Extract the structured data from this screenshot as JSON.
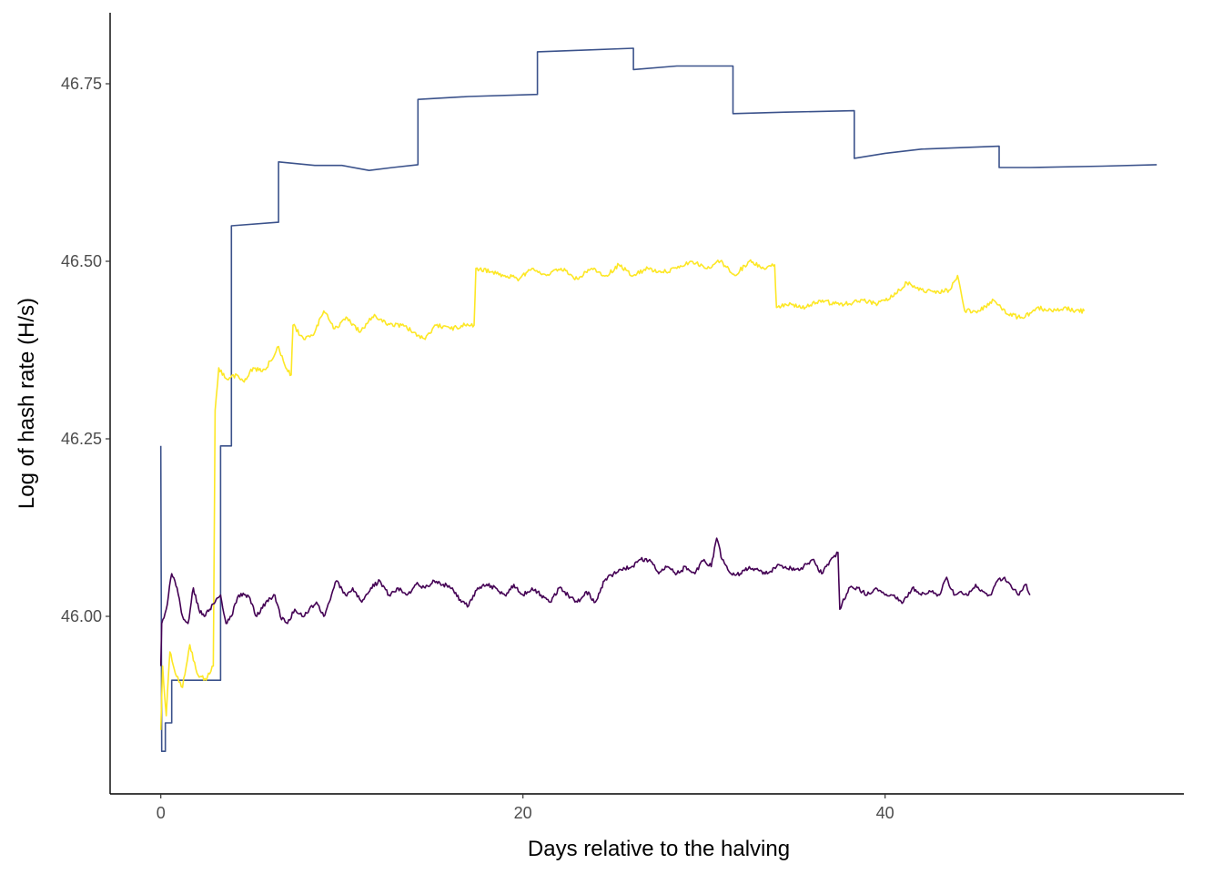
{
  "chart_data": {
    "type": "line",
    "title": "",
    "xlabel": "Days relative to the halving",
    "ylabel": "Log of hash rate (H/s)",
    "xlim": [
      -2.8,
      56.5
    ],
    "ylim": [
      45.75,
      46.85
    ],
    "x_ticks": [
      0,
      20,
      40
    ],
    "x_tick_labels": [
      "0",
      "20",
      "40"
    ],
    "y_ticks": [
      46.0,
      46.25,
      46.5,
      46.75
    ],
    "y_tick_labels": [
      "46.00",
      "46.25",
      "46.50",
      "46.75"
    ],
    "grid": false,
    "legend": "none",
    "series": [
      {
        "color": "#3b528b",
        "step": true,
        "points": [
          [
            0.0,
            46.24
          ],
          [
            0.05,
            45.81
          ],
          [
            0.25,
            45.81
          ],
          [
            0.25,
            45.85
          ],
          [
            0.6,
            45.85
          ],
          [
            0.6,
            45.91
          ],
          [
            3.3,
            45.91
          ],
          [
            3.3,
            46.24
          ],
          [
            3.9,
            46.24
          ],
          [
            3.9,
            46.55
          ],
          [
            6.5,
            46.555
          ],
          [
            6.5,
            46.64
          ],
          [
            8.5,
            46.635
          ],
          [
            10.0,
            46.635
          ],
          [
            11.5,
            46.628
          ],
          [
            12.8,
            46.632
          ],
          [
            14.2,
            46.636
          ],
          [
            14.2,
            46.728
          ],
          [
            17.0,
            46.732
          ],
          [
            20.8,
            46.735
          ],
          [
            20.8,
            46.795
          ],
          [
            23.0,
            46.797
          ],
          [
            26.1,
            46.8
          ],
          [
            26.1,
            46.77
          ],
          [
            28.5,
            46.775
          ],
          [
            31.6,
            46.775
          ],
          [
            31.6,
            46.708
          ],
          [
            34.5,
            46.71
          ],
          [
            38.3,
            46.712
          ],
          [
            38.3,
            46.645
          ],
          [
            40.0,
            46.652
          ],
          [
            42.0,
            46.658
          ],
          [
            46.3,
            46.662
          ],
          [
            46.3,
            46.632
          ],
          [
            48.0,
            46.632
          ],
          [
            52.0,
            46.634
          ],
          [
            55.0,
            46.636
          ]
        ]
      },
      {
        "color": "#fde725",
        "step": false,
        "points": [
          [
            0.0,
            45.84
          ],
          [
            0.1,
            45.93
          ],
          [
            0.3,
            45.86
          ],
          [
            0.5,
            45.95
          ],
          [
            0.8,
            45.92
          ],
          [
            1.2,
            45.9
          ],
          [
            1.6,
            45.96
          ],
          [
            2.0,
            45.92
          ],
          [
            2.5,
            45.91
          ],
          [
            2.9,
            45.93
          ],
          [
            3.0,
            46.29
          ],
          [
            3.2,
            46.35
          ],
          [
            3.6,
            46.335
          ],
          [
            4.2,
            46.34
          ],
          [
            4.6,
            46.33
          ],
          [
            5.1,
            46.35
          ],
          [
            5.6,
            46.345
          ],
          [
            6.1,
            46.36
          ],
          [
            6.5,
            46.38
          ],
          [
            6.9,
            46.35
          ],
          [
            7.2,
            46.34
          ],
          [
            7.3,
            46.41
          ],
          [
            7.9,
            46.39
          ],
          [
            8.5,
            46.4
          ],
          [
            9.0,
            46.43
          ],
          [
            9.6,
            46.405
          ],
          [
            10.3,
            46.42
          ],
          [
            11.0,
            46.4
          ],
          [
            11.8,
            46.425
          ],
          [
            12.5,
            46.41
          ],
          [
            13.3,
            46.41
          ],
          [
            14.0,
            46.4
          ],
          [
            14.6,
            46.39
          ],
          [
            15.2,
            46.41
          ],
          [
            16.0,
            46.405
          ],
          [
            16.8,
            46.41
          ],
          [
            17.3,
            46.41
          ],
          [
            17.4,
            46.49
          ],
          [
            18.2,
            46.485
          ],
          [
            19.0,
            46.48
          ],
          [
            19.8,
            46.475
          ],
          [
            20.5,
            46.49
          ],
          [
            21.3,
            46.48
          ],
          [
            22.1,
            46.49
          ],
          [
            23.0,
            46.475
          ],
          [
            23.8,
            46.49
          ],
          [
            24.6,
            46.48
          ],
          [
            25.3,
            46.495
          ],
          [
            26.1,
            46.48
          ],
          [
            26.9,
            46.49
          ],
          [
            27.7,
            46.485
          ],
          [
            28.5,
            46.49
          ],
          [
            29.3,
            46.5
          ],
          [
            30.1,
            46.49
          ],
          [
            30.9,
            46.5
          ],
          [
            31.7,
            46.48
          ],
          [
            32.5,
            46.5
          ],
          [
            33.3,
            46.49
          ],
          [
            33.9,
            46.495
          ],
          [
            34.0,
            46.435
          ],
          [
            34.8,
            46.44
          ],
          [
            35.6,
            46.435
          ],
          [
            36.4,
            46.445
          ],
          [
            37.2,
            46.44
          ],
          [
            38.0,
            46.44
          ],
          [
            38.8,
            46.445
          ],
          [
            39.6,
            46.44
          ],
          [
            40.4,
            46.45
          ],
          [
            41.2,
            46.47
          ],
          [
            42.0,
            46.46
          ],
          [
            42.8,
            46.455
          ],
          [
            43.6,
            46.46
          ],
          [
            44.0,
            46.48
          ],
          [
            44.4,
            46.43
          ],
          [
            45.2,
            46.43
          ],
          [
            46.0,
            46.445
          ],
          [
            46.8,
            46.425
          ],
          [
            47.6,
            46.42
          ],
          [
            48.4,
            46.435
          ],
          [
            49.2,
            46.43
          ],
          [
            50.0,
            46.435
          ],
          [
            50.5,
            46.43
          ],
          [
            51.0,
            46.43
          ]
        ]
      },
      {
        "color": "#440154",
        "step": false,
        "points": [
          [
            0.0,
            45.93
          ],
          [
            0.05,
            45.99
          ],
          [
            0.3,
            46.01
          ],
          [
            0.6,
            46.06
          ],
          [
            0.9,
            46.04
          ],
          [
            1.2,
            46.0
          ],
          [
            1.5,
            45.99
          ],
          [
            1.8,
            46.04
          ],
          [
            2.1,
            46.01
          ],
          [
            2.4,
            46.0
          ],
          [
            2.7,
            46.01
          ],
          [
            3.0,
            46.02
          ],
          [
            3.3,
            46.03
          ],
          [
            3.6,
            45.99
          ],
          [
            3.9,
            46.0
          ],
          [
            4.3,
            46.03
          ],
          [
            4.8,
            46.03
          ],
          [
            5.3,
            46.0
          ],
          [
            5.8,
            46.02
          ],
          [
            6.3,
            46.03
          ],
          [
            6.6,
            46.0
          ],
          [
            7.0,
            45.99
          ],
          [
            7.4,
            46.01
          ],
          [
            7.8,
            46.0
          ],
          [
            8.2,
            46.01
          ],
          [
            8.6,
            46.02
          ],
          [
            9.0,
            46.0
          ],
          [
            9.3,
            46.02
          ],
          [
            9.7,
            46.05
          ],
          [
            10.2,
            46.03
          ],
          [
            10.6,
            46.04
          ],
          [
            11.1,
            46.02
          ],
          [
            11.6,
            46.04
          ],
          [
            12.1,
            46.05
          ],
          [
            12.6,
            46.03
          ],
          [
            13.1,
            46.04
          ],
          [
            13.6,
            46.03
          ],
          [
            14.1,
            46.045
          ],
          [
            14.6,
            46.04
          ],
          [
            15.1,
            46.05
          ],
          [
            15.6,
            46.045
          ],
          [
            16.1,
            46.04
          ],
          [
            16.6,
            46.02
          ],
          [
            17.0,
            46.015
          ],
          [
            17.5,
            46.04
          ],
          [
            18.0,
            46.045
          ],
          [
            18.5,
            46.04
          ],
          [
            19.0,
            46.03
          ],
          [
            19.5,
            46.045
          ],
          [
            20.0,
            46.03
          ],
          [
            20.5,
            46.04
          ],
          [
            21.0,
            46.03
          ],
          [
            21.5,
            46.02
          ],
          [
            22.0,
            46.04
          ],
          [
            22.5,
            46.03
          ],
          [
            23.0,
            46.02
          ],
          [
            23.5,
            46.035
          ],
          [
            24.0,
            46.02
          ],
          [
            24.5,
            46.05
          ],
          [
            25.0,
            46.06
          ],
          [
            25.5,
            46.065
          ],
          [
            26.0,
            46.07
          ],
          [
            26.5,
            46.08
          ],
          [
            27.0,
            46.08
          ],
          [
            27.5,
            46.06
          ],
          [
            28.0,
            46.07
          ],
          [
            28.5,
            46.06
          ],
          [
            29.0,
            46.07
          ],
          [
            29.5,
            46.06
          ],
          [
            30.0,
            46.08
          ],
          [
            30.4,
            46.07
          ],
          [
            30.7,
            46.11
          ],
          [
            31.0,
            46.08
          ],
          [
            31.5,
            46.06
          ],
          [
            32.0,
            46.06
          ],
          [
            32.5,
            46.07
          ],
          [
            33.0,
            46.065
          ],
          [
            33.5,
            46.06
          ],
          [
            34.0,
            46.07
          ],
          [
            34.5,
            46.07
          ],
          [
            35.0,
            46.065
          ],
          [
            35.5,
            46.07
          ],
          [
            36.0,
            46.08
          ],
          [
            36.5,
            46.06
          ],
          [
            37.0,
            46.08
          ],
          [
            37.4,
            46.09
          ],
          [
            37.5,
            46.01
          ],
          [
            38.0,
            46.04
          ],
          [
            38.5,
            46.04
          ],
          [
            39.0,
            46.03
          ],
          [
            39.5,
            46.04
          ],
          [
            40.0,
            46.03
          ],
          [
            40.5,
            46.03
          ],
          [
            41.0,
            46.02
          ],
          [
            41.5,
            46.04
          ],
          [
            42.0,
            46.03
          ],
          [
            42.5,
            46.035
          ],
          [
            43.0,
            46.03
          ],
          [
            43.4,
            46.055
          ],
          [
            43.8,
            46.03
          ],
          [
            44.2,
            46.035
          ],
          [
            44.6,
            46.03
          ],
          [
            45.0,
            46.045
          ],
          [
            45.4,
            46.035
          ],
          [
            45.8,
            46.03
          ],
          [
            46.2,
            46.05
          ],
          [
            46.6,
            46.055
          ],
          [
            47.0,
            46.04
          ],
          [
            47.4,
            46.03
          ],
          [
            47.8,
            46.045
          ],
          [
            48.0,
            46.03
          ]
        ]
      }
    ]
  }
}
